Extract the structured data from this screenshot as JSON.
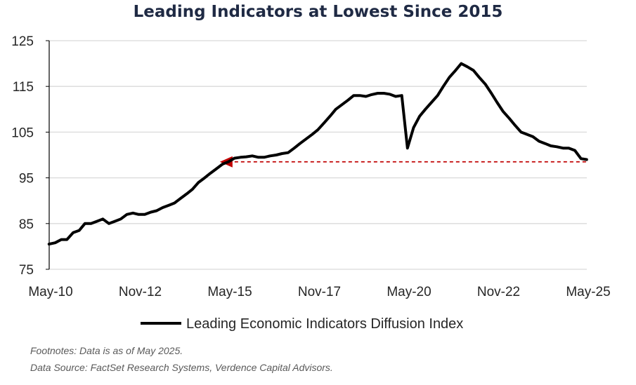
{
  "chart_data": {
    "type": "line",
    "title": "Leading Indicators at Lowest Since 2015",
    "xlabel": "",
    "ylabel": "",
    "ylim": [
      75,
      125
    ],
    "yticks": [
      75,
      85,
      95,
      105,
      115,
      125
    ],
    "x_range": [
      2010.333,
      2025.333
    ],
    "xticks": [
      {
        "label": "May-10",
        "x": 2010.333
      },
      {
        "label": "Nov-12",
        "x": 2012.833
      },
      {
        "label": "May-15",
        "x": 2015.333
      },
      {
        "label": "Nov-17",
        "x": 2017.833
      },
      {
        "label": "May-20",
        "x": 2020.333
      },
      {
        "label": "Nov-22",
        "x": 2022.833
      },
      {
        "label": "May-25",
        "x": 2025.333
      }
    ],
    "series": [
      {
        "name": "Leading Economic Indicators Diffusion Index",
        "color": "#000000",
        "points": [
          [
            2010.33,
            80.5
          ],
          [
            2010.5,
            80.8
          ],
          [
            2010.67,
            81.5
          ],
          [
            2010.83,
            81.5
          ],
          [
            2011.0,
            83.0
          ],
          [
            2011.17,
            83.5
          ],
          [
            2011.33,
            85.0
          ],
          [
            2011.5,
            85.0
          ],
          [
            2011.67,
            85.5
          ],
          [
            2011.83,
            86.0
          ],
          [
            2012.0,
            85.0
          ],
          [
            2012.17,
            85.5
          ],
          [
            2012.33,
            86.0
          ],
          [
            2012.5,
            87.0
          ],
          [
            2012.67,
            87.3
          ],
          [
            2012.83,
            87.0
          ],
          [
            2013.0,
            87.0
          ],
          [
            2013.17,
            87.5
          ],
          [
            2013.33,
            87.8
          ],
          [
            2013.5,
            88.5
          ],
          [
            2013.67,
            89.0
          ],
          [
            2013.83,
            89.5
          ],
          [
            2014.0,
            90.5
          ],
          [
            2014.17,
            91.5
          ],
          [
            2014.33,
            92.5
          ],
          [
            2014.5,
            94.0
          ],
          [
            2014.67,
            95.0
          ],
          [
            2014.83,
            96.0
          ],
          [
            2015.0,
            97.0
          ],
          [
            2015.17,
            98.0
          ],
          [
            2015.33,
            98.5
          ],
          [
            2015.5,
            99.3
          ],
          [
            2015.67,
            99.5
          ],
          [
            2015.83,
            99.6
          ],
          [
            2016.0,
            99.8
          ],
          [
            2016.17,
            99.5
          ],
          [
            2016.33,
            99.5
          ],
          [
            2016.5,
            99.8
          ],
          [
            2016.67,
            100.0
          ],
          [
            2016.83,
            100.3
          ],
          [
            2017.0,
            100.5
          ],
          [
            2017.17,
            101.5
          ],
          [
            2017.33,
            102.5
          ],
          [
            2017.5,
            103.5
          ],
          [
            2017.67,
            104.5
          ],
          [
            2017.83,
            105.5
          ],
          [
            2018.0,
            107.0
          ],
          [
            2018.17,
            108.5
          ],
          [
            2018.33,
            110.0
          ],
          [
            2018.5,
            111.0
          ],
          [
            2018.67,
            112.0
          ],
          [
            2018.83,
            113.0
          ],
          [
            2019.0,
            113.0
          ],
          [
            2019.17,
            112.8
          ],
          [
            2019.33,
            113.2
          ],
          [
            2019.5,
            113.5
          ],
          [
            2019.67,
            113.5
          ],
          [
            2019.83,
            113.3
          ],
          [
            2020.0,
            112.8
          ],
          [
            2020.17,
            113.0
          ],
          [
            2020.33,
            101.5
          ],
          [
            2020.5,
            106.0
          ],
          [
            2020.67,
            108.5
          ],
          [
            2020.83,
            110.0
          ],
          [
            2021.0,
            111.5
          ],
          [
            2021.17,
            113.0
          ],
          [
            2021.33,
            115.0
          ],
          [
            2021.5,
            117.0
          ],
          [
            2021.67,
            118.5
          ],
          [
            2021.83,
            120.0
          ],
          [
            2022.0,
            119.3
          ],
          [
            2022.17,
            118.5
          ],
          [
            2022.33,
            117.0
          ],
          [
            2022.5,
            115.5
          ],
          [
            2022.67,
            113.5
          ],
          [
            2022.83,
            111.5
          ],
          [
            2023.0,
            109.5
          ],
          [
            2023.17,
            108.0
          ],
          [
            2023.33,
            106.5
          ],
          [
            2023.5,
            105.0
          ],
          [
            2023.67,
            104.5
          ],
          [
            2023.83,
            104.0
          ],
          [
            2024.0,
            103.0
          ],
          [
            2024.17,
            102.5
          ],
          [
            2024.33,
            102.0
          ],
          [
            2024.5,
            101.8
          ],
          [
            2024.67,
            101.5
          ],
          [
            2024.83,
            101.5
          ],
          [
            2025.0,
            101.0
          ],
          [
            2025.17,
            99.2
          ],
          [
            2025.33,
            99.0
          ]
        ]
      }
    ],
    "annotations": [
      {
        "type": "dashed-line",
        "color": "#c00000",
        "y": 98.5,
        "x_start": 2015.33,
        "x_end": 2025.33
      },
      {
        "type": "arrowhead",
        "color": "#c00000",
        "y": 98.5,
        "x": 2015.33
      }
    ],
    "legend": {
      "position": "bottom",
      "label": "Leading Economic Indicators Diffusion Index"
    },
    "grid": true
  },
  "footnotes": {
    "line1": "Footnotes: Data is as of May 2025.",
    "line2": "Data Source: FactSet Research Systems, Verdence Capital Advisors."
  }
}
